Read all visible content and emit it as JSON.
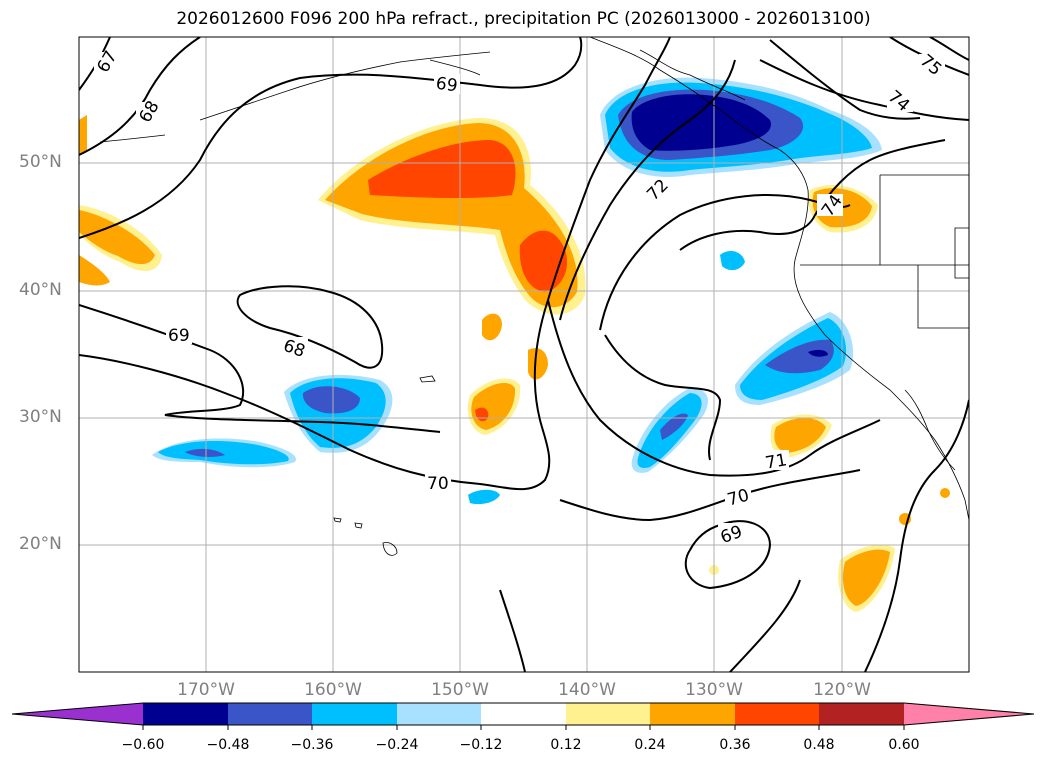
{
  "title": "2026012600 F096 200 hPa refract., precipitation PC (2026013000 - 2026013100)",
  "map": {
    "lat_labels": [
      "50°N",
      "40°N",
      "30°N",
      "20°N"
    ],
    "lon_labels": [
      "170°W",
      "160°W",
      "150°W",
      "140°W",
      "130°W",
      "120°W"
    ],
    "lat_values": [
      50,
      40,
      30,
      20
    ],
    "lon_values": [
      -170,
      -160,
      -150,
      -140,
      -130,
      -120
    ],
    "lon_range": [
      -180,
      -110
    ],
    "lat_range": [
      10,
      60
    ],
    "contour_labels": [
      "67",
      "68",
      "69",
      "68",
      "69",
      "70",
      "70",
      "69",
      "71",
      "72",
      "74",
      "74",
      "75"
    ]
  },
  "colorbar": {
    "colors": [
      "#9b30d0",
      "#000090",
      "#3a55c8",
      "#00bfff",
      "#a8e0ff",
      "#ffffff",
      "#fff090",
      "#ffa500",
      "#ff4500",
      "#b22222",
      "#ff80a8"
    ],
    "tick_labels": [
      "−0.60",
      "−0.48",
      "−0.36",
      "−0.24",
      "−0.12",
      "0.12",
      "0.24",
      "0.36",
      "0.48",
      "0.60"
    ],
    "tick_values": [
      -0.6,
      -0.48,
      -0.36,
      -0.24,
      -0.12,
      0.12,
      0.24,
      0.36,
      0.48,
      0.6
    ]
  }
}
